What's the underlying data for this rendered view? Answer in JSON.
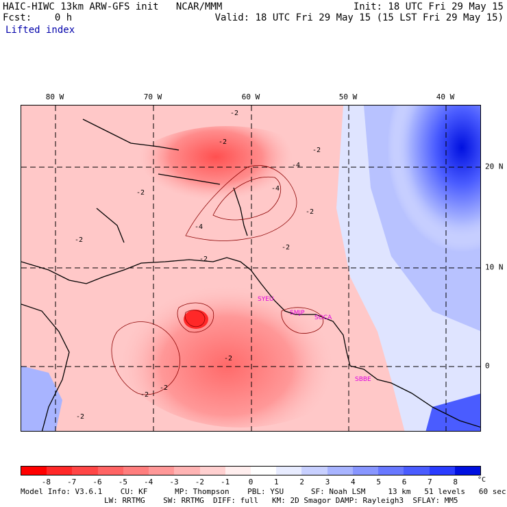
{
  "header": {
    "model_line": "HAIC-HIWC 13km ARW-GFS init   NCAR/MMM",
    "fcst_line": "Fcst:    0 h",
    "variable": "Lifted index",
    "init_line": "Init: 18 UTC Fri 29 May 15",
    "valid_line": "Valid: 18 UTC Fri 29 May 15 (15 LST Fri 29 May 15)"
  },
  "map": {
    "lon_labels": [
      "80 W",
      "70 W",
      "60 W",
      "50 W",
      "40 W"
    ],
    "lat_labels": [
      "20 N",
      "10 N",
      "0"
    ],
    "contour_labels": [
      "-2",
      "-2",
      "-2",
      "-2",
      "-2",
      "-4",
      "-4",
      "-4",
      "-2",
      "-2",
      "-2",
      "-2",
      "-2",
      "-2",
      "-2"
    ],
    "stations": [
      "SYEU",
      "SMJP",
      "SOCA",
      "SBBE"
    ],
    "colors": {
      "strong_unstable": "#ff0000",
      "unstable": "#ff6666",
      "mild_unstable": "#f5a0a0",
      "neutral": "#ffffff",
      "stable": "#6b7cff",
      "strong_stable": "#0010e0",
      "station": "#e000e0"
    }
  },
  "colorbar": {
    "labels": [
      "-8",
      "-7",
      "-6",
      "-5",
      "-4",
      "-3",
      "-2",
      "-1",
      "0",
      "1",
      "2",
      "3",
      "4",
      "5",
      "6",
      "7",
      "8"
    ],
    "unit": "°C",
    "colors": [
      "#ff0000",
      "#ff2828",
      "#ff4646",
      "#ff6464",
      "#ff7e7e",
      "#ff9898",
      "#ffb4b4",
      "#ffd0d0",
      "#ffeeee",
      "#ffffff",
      "#e8ecff",
      "#c8d0ff",
      "#a8b4ff",
      "#8896ff",
      "#6878ff",
      "#4a5cff",
      "#2a3cff",
      "#0010e0"
    ]
  },
  "footer": {
    "line1": "Model Info: V3.6.1    CU: KF      MP: Thompson    PBL: YSU      SF: Noah LSM     13 km   51 levels   60 sec",
    "line2": "LW: RRTMG    SW: RRTMG  DIFF: full   KM: 2D Smagor DAMP: Rayleigh3  SFLAY: MM5"
  }
}
